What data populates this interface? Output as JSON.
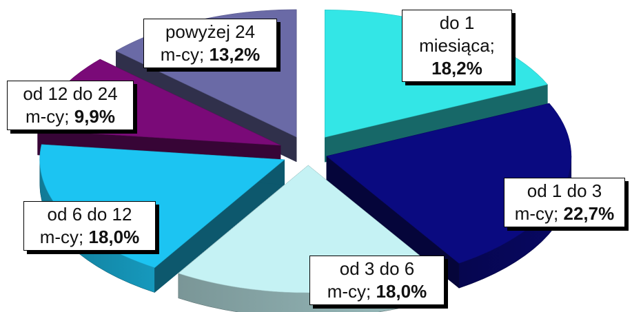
{
  "chart_data": {
    "type": "pie",
    "style": "3d-exploded",
    "title": "",
    "legend": "none",
    "slices": [
      {
        "category": "do 1 miesiąca",
        "value": 18.2,
        "value_label": "18,2%",
        "label_lines": [
          "do 1",
          "miesiąca;",
          "18,2%"
        ],
        "bold_line": 2,
        "color": "#33E6E6"
      },
      {
        "category": "od 1 do 3 m-cy",
        "value": 22.7,
        "value_label": "22,7%",
        "label_lines": [
          "od 1 do 3",
          "m-cy;",
          "22,7%"
        ],
        "bold_line": 2,
        "color": "#0A0A80"
      },
      {
        "category": "od 3 do 6 m-cy",
        "value": 18.0,
        "value_label": "18,0%",
        "label_lines": [
          "od 3 do 6",
          "m-cy;",
          "18,0%"
        ],
        "bold_line": 2,
        "color": "#C5F2F4"
      },
      {
        "category": "od 6 do 12 m-cy",
        "value": 18.0,
        "value_label": "18,0%",
        "label_lines": [
          "od 6 do 12",
          "m-cy;",
          "18,0%"
        ],
        "bold_line": 2,
        "color": "#1CC4F2"
      },
      {
        "category": "od 12 do 24 m-cy",
        "value": 9.9,
        "value_label": "9,9%",
        "label_lines": [
          "od 12 do 24",
          "m-cy;",
          "9,9%"
        ],
        "bold_line": 2,
        "color": "#7A0A78"
      },
      {
        "category": "powyżej 24 m-cy",
        "value": 13.2,
        "value_label": "13,2%",
        "label_lines": [
          "powyżej 24",
          "m-cy;",
          "13,2%"
        ],
        "bold_line": 2,
        "color": "#6A6AA6"
      }
    ]
  }
}
